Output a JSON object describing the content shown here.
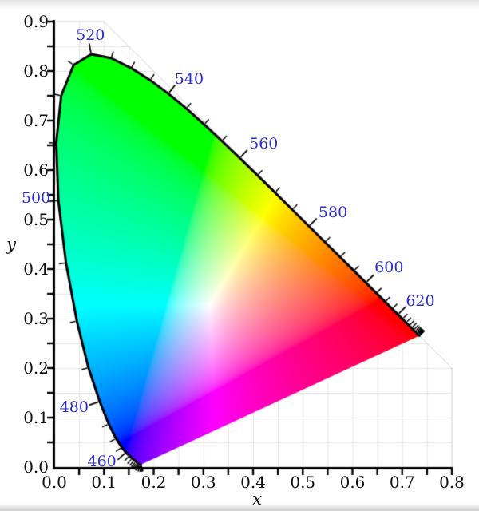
{
  "chart_data": {
    "type": "area",
    "subtype": "cie-1931-xy-chromaticity-diagram",
    "title": "",
    "xlabel": "x",
    "ylabel": "y",
    "xlim": [
      0.0,
      0.8
    ],
    "ylim": [
      0.0,
      0.9
    ],
    "grid": true,
    "grid_step": 0.05,
    "x_tick_labels": [
      "0.0",
      "0.1",
      "0.2",
      "0.3",
      "0.4",
      "0.5",
      "0.6",
      "0.7",
      "0.8"
    ],
    "y_tick_labels": [
      "0.0",
      "0.1",
      "0.2",
      "0.3",
      "0.4",
      "0.5",
      "0.6",
      "0.7",
      "0.8",
      "0.9"
    ],
    "background_region": {
      "x_max": 0.8,
      "y_max": 0.9,
      "constraint": "x+y<=1"
    },
    "labeled_wavelengths_nm": [
      460,
      480,
      500,
      520,
      540,
      560,
      580,
      600,
      620
    ],
    "wavelength_tick_step_nm": 5,
    "spectral_locus": {
      "wavelength_nm_start": 380,
      "wavelength_nm_end": 700,
      "wavelength_nm_step": 5,
      "x": [
        0.1741,
        0.174,
        0.1738,
        0.1736,
        0.1733,
        0.173,
        0.1726,
        0.1721,
        0.1714,
        0.1703,
        0.1689,
        0.1669,
        0.1644,
        0.1611,
        0.1566,
        0.151,
        0.144,
        0.1355,
        0.1241,
        0.1096,
        0.0913,
        0.0687,
        0.0454,
        0.0235,
        0.0082,
        0.0039,
        0.0139,
        0.0389,
        0.0743,
        0.1142,
        0.1547,
        0.1929,
        0.2296,
        0.2658,
        0.3016,
        0.3373,
        0.3731,
        0.4087,
        0.4441,
        0.4788,
        0.5125,
        0.5448,
        0.5752,
        0.6029,
        0.627,
        0.6482,
        0.6658,
        0.6801,
        0.6915,
        0.7006,
        0.7079,
        0.714,
        0.719,
        0.723,
        0.726,
        0.7283,
        0.73,
        0.7311,
        0.732,
        0.7327,
        0.7334,
        0.734,
        0.7344,
        0.7346,
        0.7347
      ],
      "y": [
        0.005,
        0.005,
        0.0049,
        0.0049,
        0.0048,
        0.0048,
        0.0048,
        0.0048,
        0.0051,
        0.0058,
        0.0069,
        0.0086,
        0.0109,
        0.0138,
        0.0177,
        0.0227,
        0.0297,
        0.0399,
        0.0578,
        0.0868,
        0.1327,
        0.2007,
        0.295,
        0.4127,
        0.5384,
        0.6548,
        0.7502,
        0.812,
        0.8338,
        0.8262,
        0.8059,
        0.7816,
        0.7543,
        0.7243,
        0.6923,
        0.6589,
        0.6245,
        0.5896,
        0.5547,
        0.5202,
        0.4866,
        0.4544,
        0.4242,
        0.3965,
        0.3725,
        0.3514,
        0.334,
        0.3197,
        0.3083,
        0.2993,
        0.292,
        0.2859,
        0.2809,
        0.277,
        0.274,
        0.2717,
        0.27,
        0.2689,
        0.268,
        0.2673,
        0.2666,
        0.266,
        0.2656,
        0.2654,
        0.2653
      ]
    }
  },
  "colors": {
    "wavelength_label": "#2b2bd0",
    "tick_label": "#111111",
    "axis": "#000000",
    "spectral_locus_stroke": "#000000",
    "grid_line": "#e4e4e4",
    "region_border": "#d2d2d2",
    "background": "#ffffff",
    "edge_band": "#d5d5d5"
  }
}
